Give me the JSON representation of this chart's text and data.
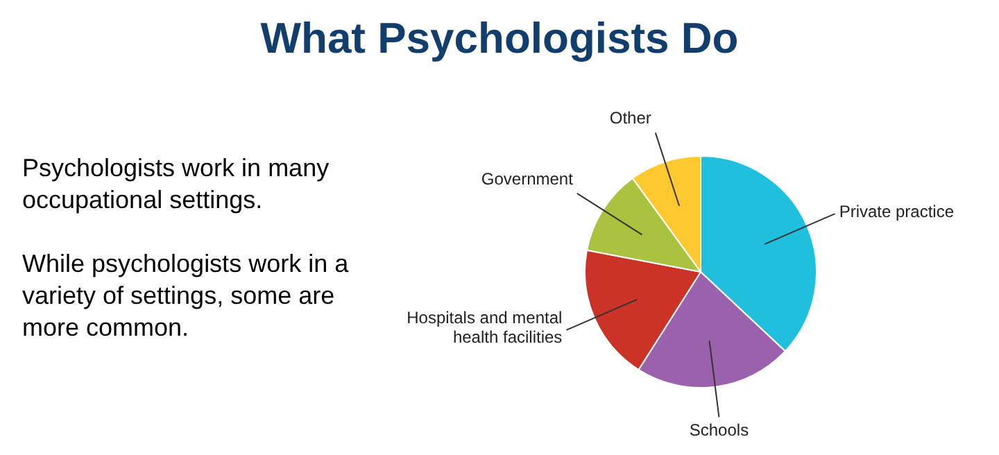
{
  "chart_data": {
    "type": "pie",
    "title": "What Psychologists Do",
    "categories": [
      "Private practice",
      "Schools",
      "Hospitals and mental health facilities",
      "Government",
      "Other"
    ],
    "values": [
      37,
      22,
      19,
      12,
      10
    ],
    "colors": [
      "#1fbfdd",
      "#9a62ad",
      "#cc3327",
      "#a9c23f",
      "#fec82f"
    ],
    "legend": false,
    "annotations": [
      "Psychologists work in many occupational settings.",
      "While psychologists work in a variety of settings, some are more common."
    ]
  }
}
